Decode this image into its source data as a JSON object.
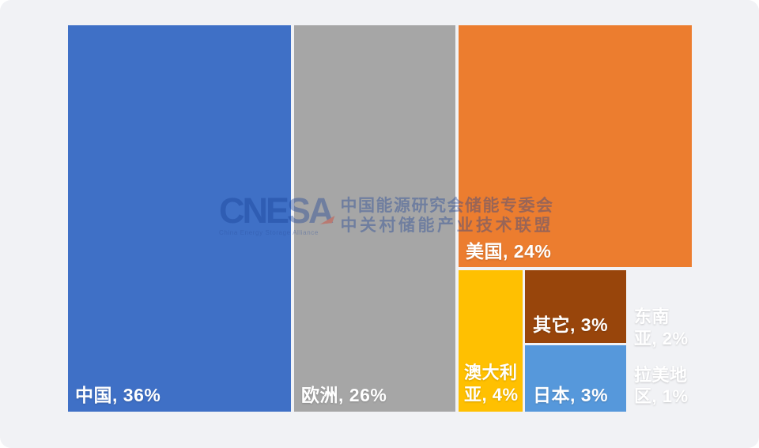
{
  "card": {
    "background": "#F1F2F5"
  },
  "watermark": {
    "logo_text": "CNESA",
    "logo_tagline": "China Energy Storage Alliance",
    "line1": "中国能源研究会储能专委会",
    "line2": "中关村储能产业技术联盟",
    "text_color": "#173F96",
    "accent_color": "#D9341F"
  },
  "chart_data": {
    "type": "treemap",
    "title": "",
    "unit": "%",
    "label_color": "#FFFFFF",
    "legend": "none",
    "items": [
      {
        "id": "china",
        "label": "中国",
        "value": 36,
        "display": "中国, 36%",
        "color": "#3F70C6"
      },
      {
        "id": "europe",
        "label": "欧洲",
        "value": 26,
        "display": "欧洲, 26%",
        "color": "#A6A6A6"
      },
      {
        "id": "usa",
        "label": "美国",
        "value": 24,
        "display": "美国, 24%",
        "color": "#EC7D2F"
      },
      {
        "id": "australia",
        "label": "澳大利亚",
        "value": 4,
        "display": "澳大利\n亚, 4%",
        "color": "#FFC001"
      },
      {
        "id": "other",
        "label": "其它",
        "value": 3,
        "display": "其它, 3%",
        "color": "#98450B"
      },
      {
        "id": "japan",
        "label": "日本",
        "value": 3,
        "display": "日本, 3%",
        "color": "#5698DB"
      },
      {
        "id": "sea",
        "label": "东南亚",
        "value": 2,
        "display": "东南\n亚, 2%",
        "color": "#71AC48"
      },
      {
        "id": "latam",
        "label": "拉美地区",
        "value": 1,
        "display": "拉美地\n区, 1%",
        "color": "#1F3A6D"
      }
    ]
  }
}
